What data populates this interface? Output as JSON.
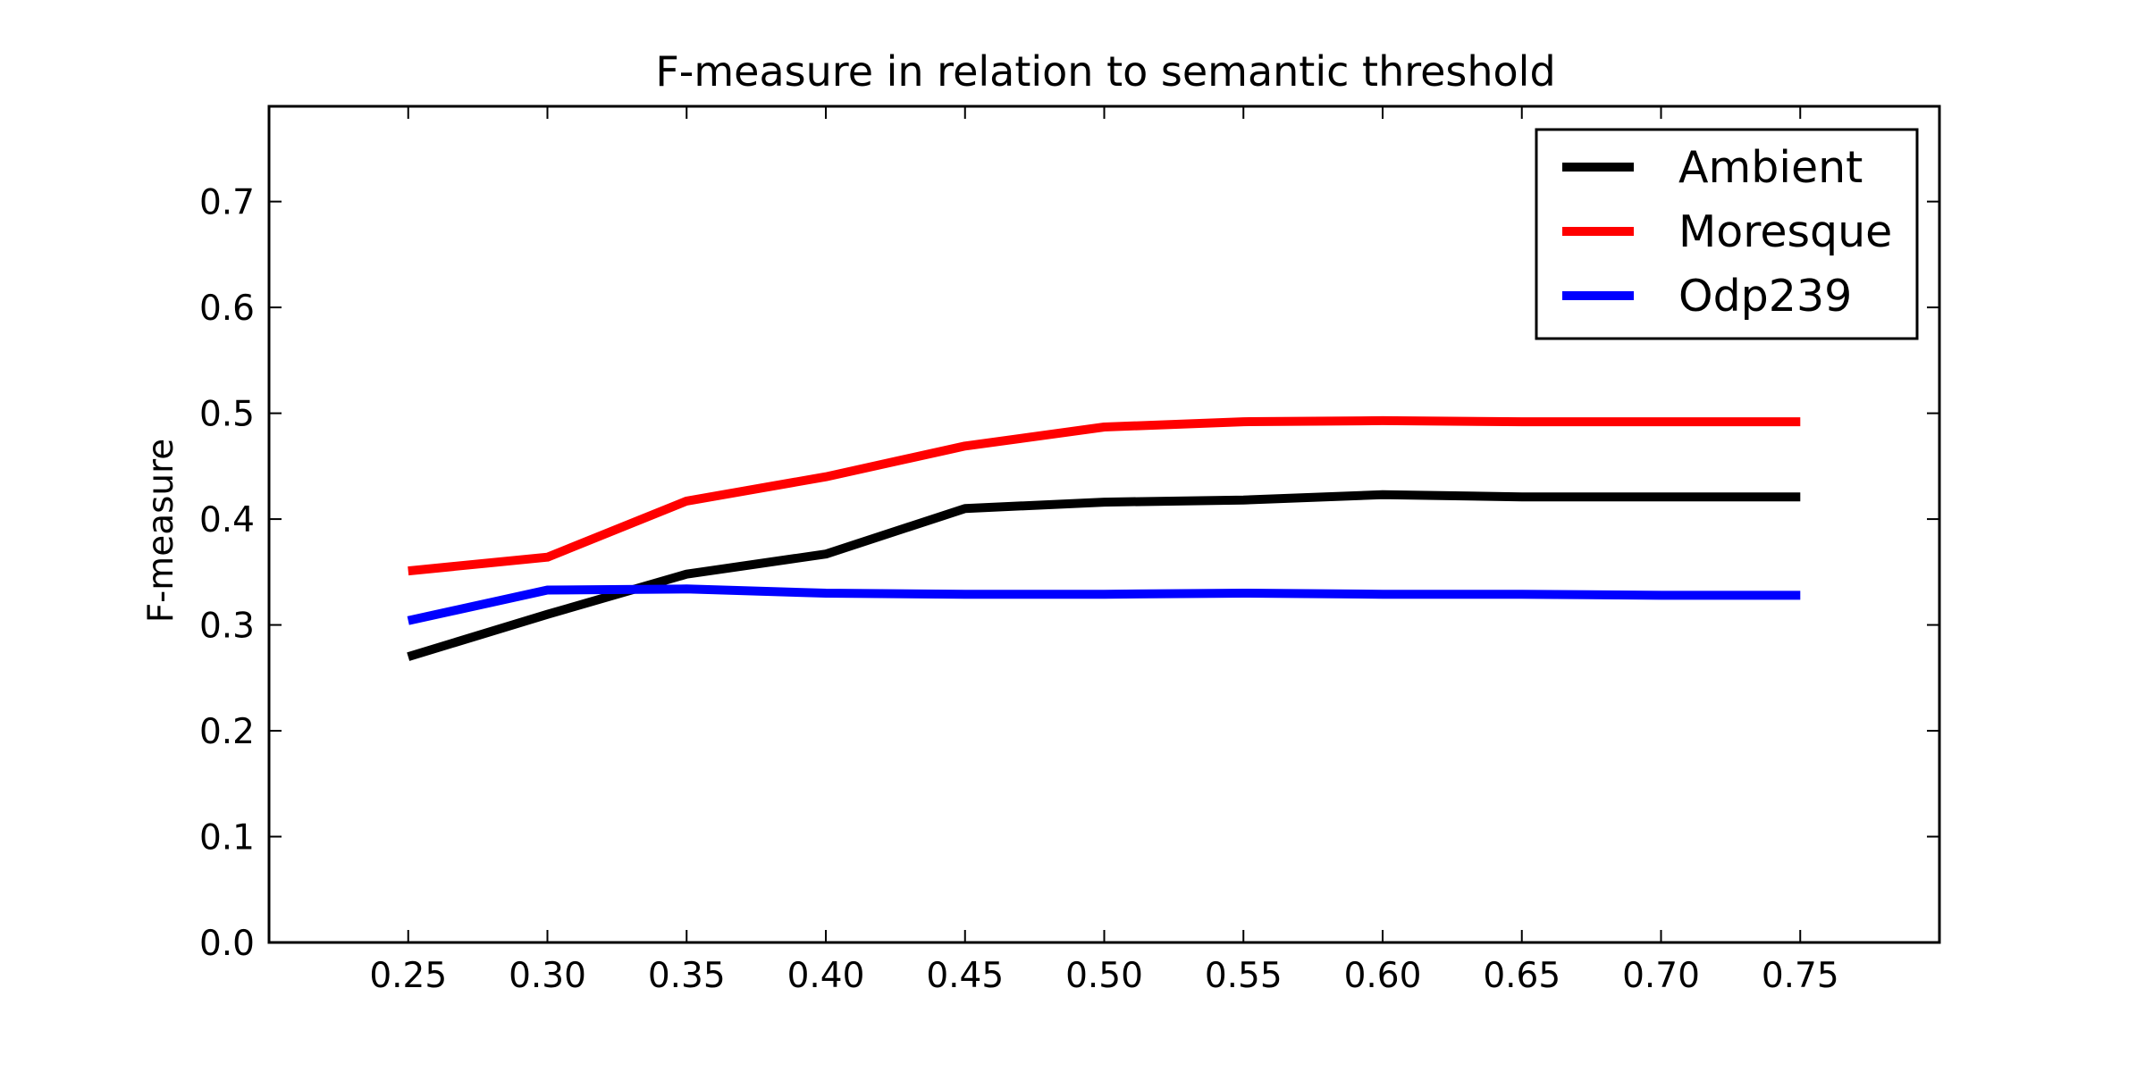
{
  "chart_data": {
    "type": "line",
    "title": "F-measure in relation to semantic threshold",
    "xlabel": "",
    "ylabel": "F-measure",
    "x": [
      0.25,
      0.3,
      0.35,
      0.4,
      0.45,
      0.5,
      0.55,
      0.6,
      0.65,
      0.7,
      0.75
    ],
    "xticks": [
      "0.25",
      "0.30",
      "0.35",
      "0.40",
      "0.45",
      "0.50",
      "0.55",
      "0.60",
      "0.65",
      "0.70",
      "0.75"
    ],
    "yticks": [
      "0.0",
      "0.1",
      "0.2",
      "0.3",
      "0.4",
      "0.5",
      "0.6",
      "0.7"
    ],
    "ytick_values": [
      0.0,
      0.1,
      0.2,
      0.3,
      0.4,
      0.5,
      0.6,
      0.7
    ],
    "xlim": [
      0.2,
      0.8
    ],
    "ylim": [
      0.0,
      0.79
    ],
    "grid": false,
    "legend_position": "top-right",
    "series": [
      {
        "name": "Ambient",
        "color": "#000000",
        "values": [
          0.27,
          0.31,
          0.348,
          0.367,
          0.41,
          0.416,
          0.418,
          0.423,
          0.421,
          0.421,
          0.421
        ]
      },
      {
        "name": "Moresque",
        "color": "#ff0000",
        "values": [
          0.351,
          0.364,
          0.417,
          0.44,
          0.469,
          0.487,
          0.492,
          0.493,
          0.492,
          0.492,
          0.492
        ]
      },
      {
        "name": "Odp239",
        "color": "#0000ff",
        "values": [
          0.304,
          0.333,
          0.334,
          0.33,
          0.329,
          0.329,
          0.33,
          0.329,
          0.329,
          0.328,
          0.328
        ]
      }
    ]
  }
}
